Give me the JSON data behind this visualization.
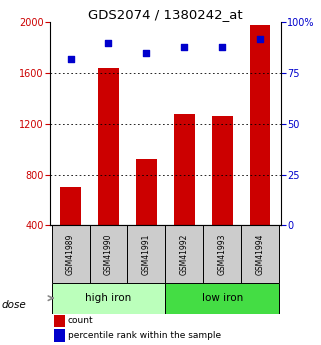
{
  "title": "GDS2074 / 1380242_at",
  "samples": [
    "GSM41989",
    "GSM41990",
    "GSM41991",
    "GSM41992",
    "GSM41993",
    "GSM41994"
  ],
  "bar_values": [
    700,
    1640,
    920,
    1280,
    1260,
    1980
  ],
  "percentile_values": [
    82,
    90,
    85,
    88,
    88,
    92
  ],
  "bar_color": "#cc0000",
  "dot_color": "#0000cc",
  "ylim_left": [
    400,
    2000
  ],
  "ylim_right": [
    0,
    100
  ],
  "yticks_left": [
    400,
    800,
    1200,
    1600,
    2000
  ],
  "yticks_right": [
    0,
    25,
    50,
    75,
    100
  ],
  "yticklabels_right": [
    "0",
    "25",
    "50",
    "75",
    "100%"
  ],
  "grid_values": [
    800,
    1200,
    1600
  ],
  "groups": [
    {
      "label": "high iron",
      "color": "#bbffbb"
    },
    {
      "label": "low iron",
      "color": "#44dd44"
    }
  ],
  "dose_label": "dose",
  "legend_count_label": "count",
  "legend_pct_label": "percentile rank within the sample",
  "background_color": "#ffffff",
  "label_color_left": "#cc0000",
  "label_color_right": "#0000cc",
  "title_fontsize": 9.5,
  "tick_fontsize": 7,
  "sample_fontsize": 5.5,
  "group_fontsize": 7.5,
  "legend_fontsize": 6.5,
  "dose_fontsize": 7.5
}
